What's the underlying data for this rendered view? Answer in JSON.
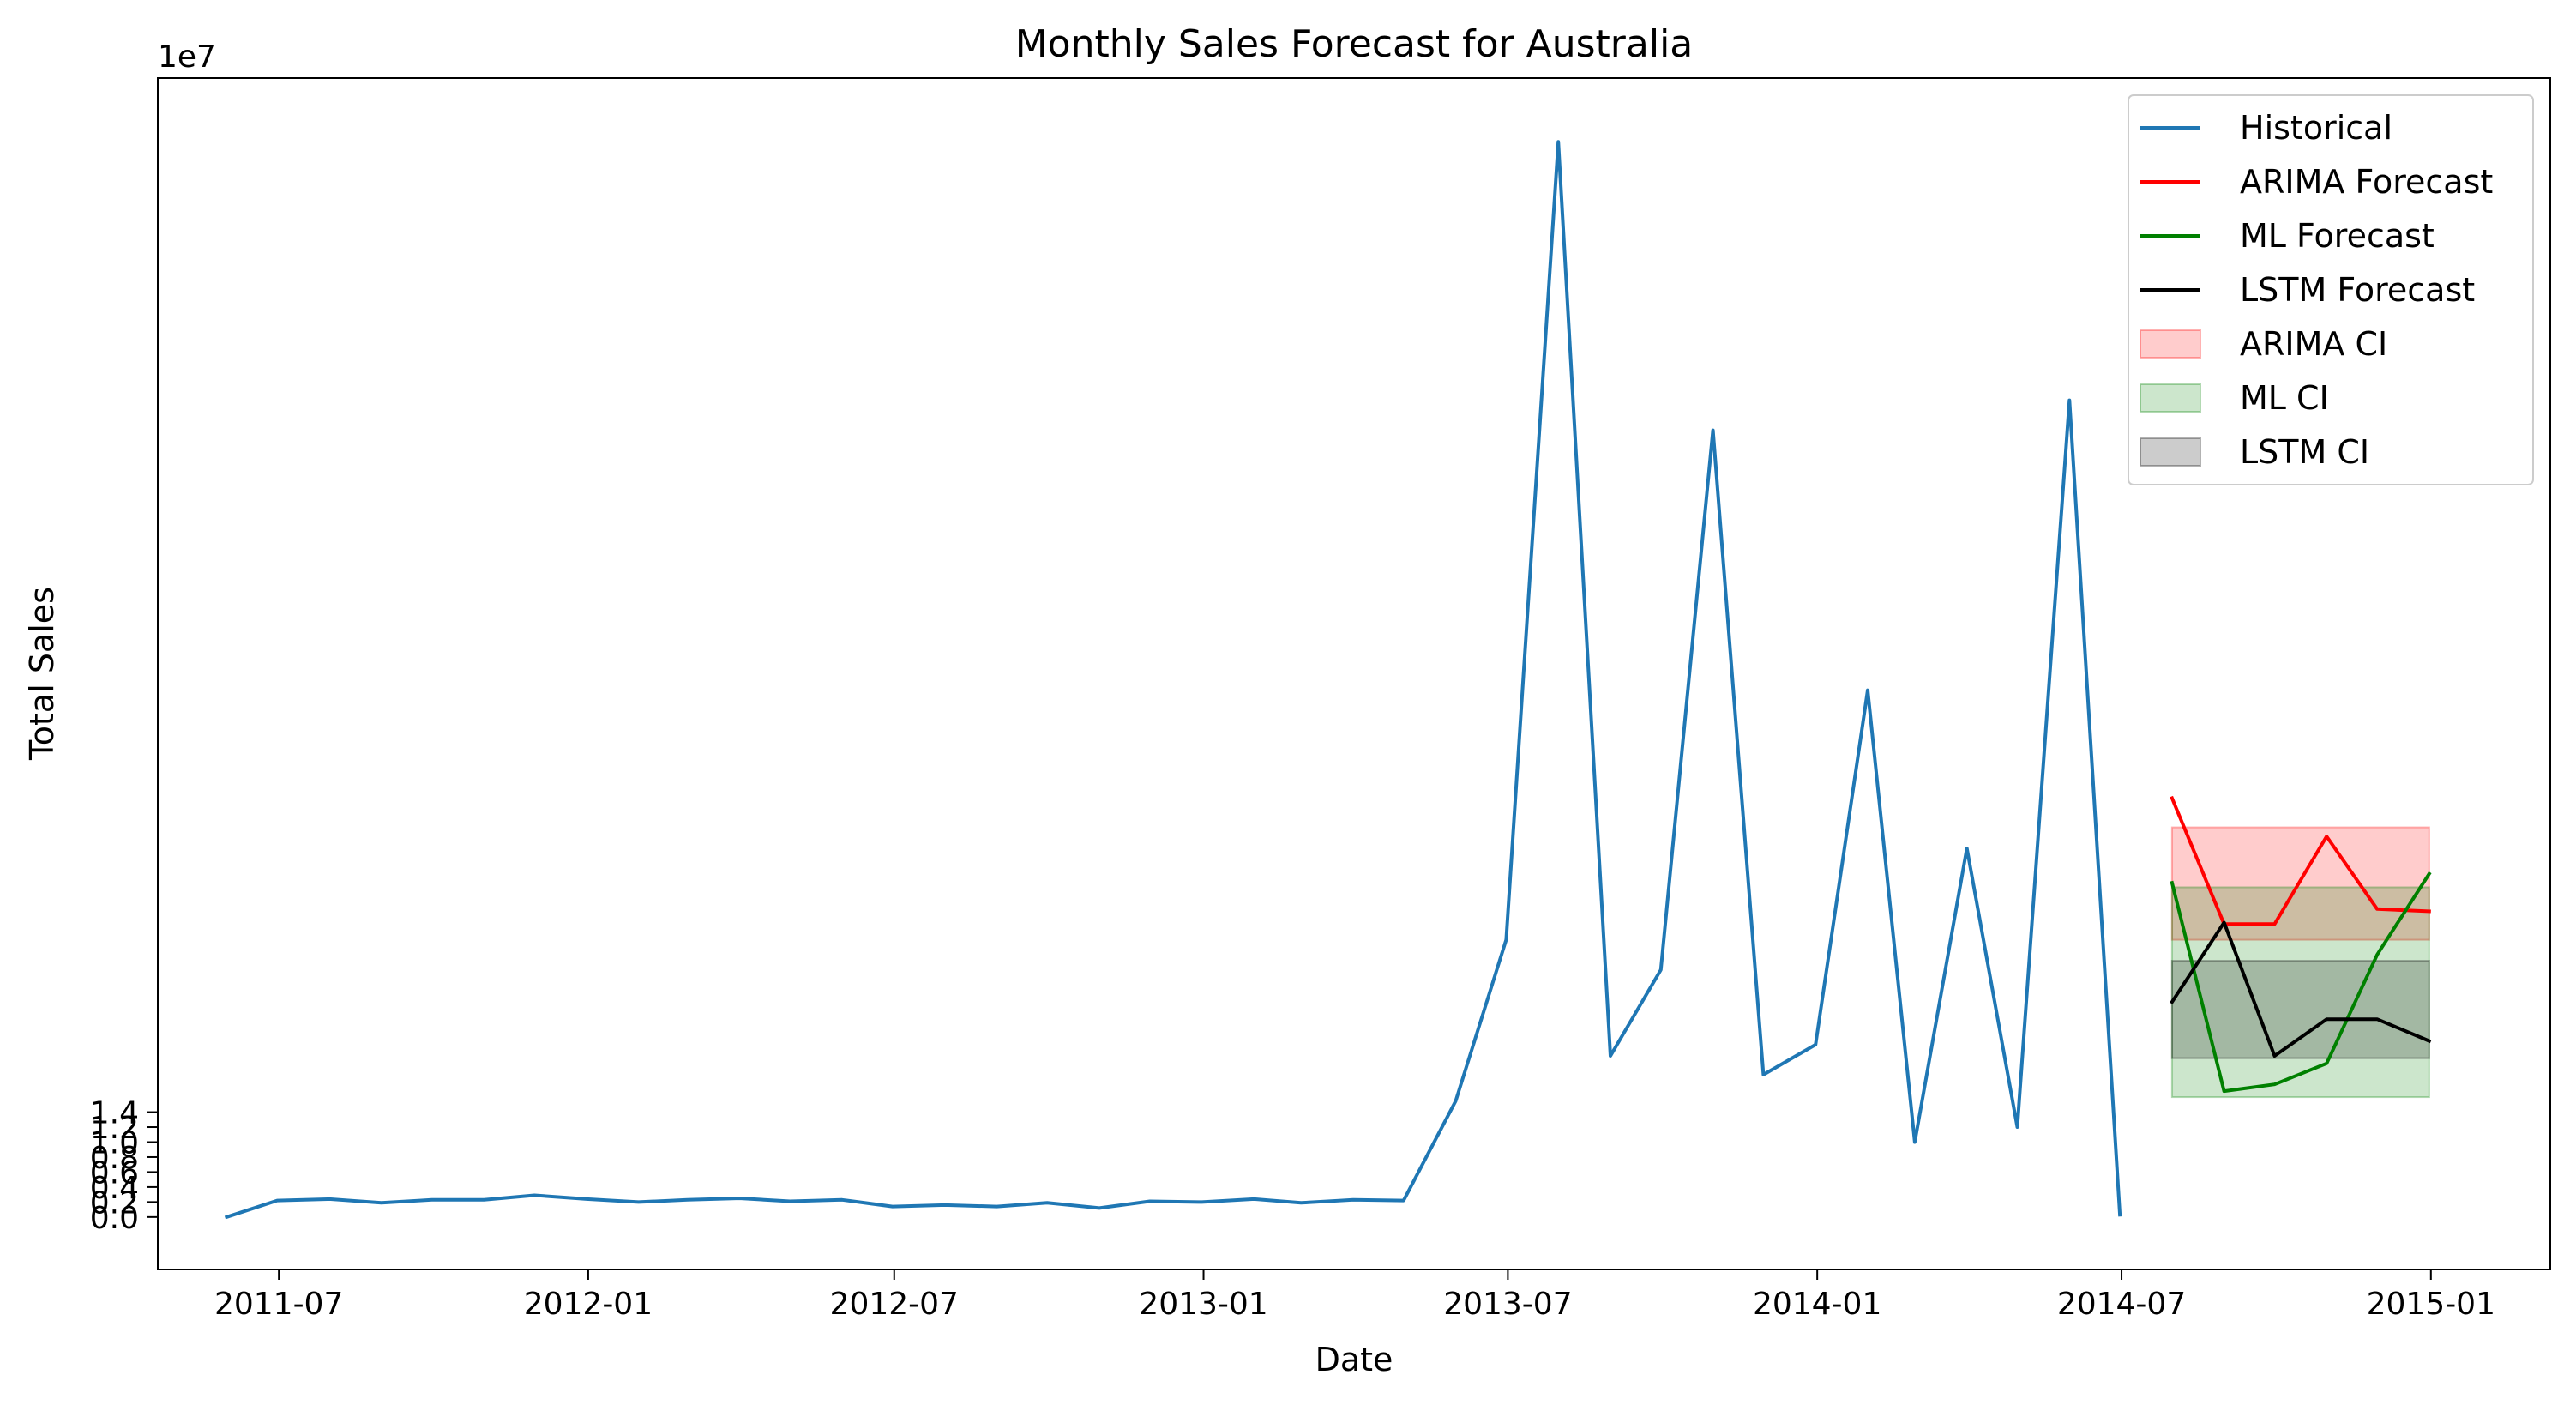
{
  "chart_data": {
    "type": "line",
    "title": "Monthly Sales Forecast for Australia",
    "xlabel": "Date",
    "ylabel": "Total Sales",
    "y_offset_label": "1e7",
    "y_scale_exponent": 7,
    "xlim": [
      "2011-04-20",
      "2015-03-13"
    ],
    "ylim": [
      -0.07,
      1.52
    ],
    "x_ticks": [
      "2011-07",
      "2012-01",
      "2012-07",
      "2013-01",
      "2013-07",
      "2014-01",
      "2014-07",
      "2015-01"
    ],
    "y_ticks": [
      "0.0",
      "0.2",
      "0.4",
      "0.6",
      "0.8",
      "1.0",
      "1.2",
      "1.4"
    ],
    "grid": false,
    "legend_position": "top-right",
    "series": [
      {
        "name": "Historical",
        "kind": "line",
        "color": "#1f77b4",
        "x": [
          "2011-05-31",
          "2011-06-30",
          "2011-07-31",
          "2011-08-31",
          "2011-09-30",
          "2011-10-31",
          "2011-11-30",
          "2011-12-31",
          "2012-01-31",
          "2012-02-29",
          "2012-03-31",
          "2012-04-30",
          "2012-05-31",
          "2012-06-30",
          "2012-07-31",
          "2012-08-31",
          "2012-09-30",
          "2012-10-31",
          "2012-11-30",
          "2012-12-31",
          "2013-01-31",
          "2013-02-28",
          "2013-03-31",
          "2013-04-30",
          "2013-05-31",
          "2013-06-30",
          "2013-07-31",
          "2013-08-31",
          "2013-09-30",
          "2013-10-31",
          "2013-11-30",
          "2013-12-31",
          "2014-01-31",
          "2014-02-28",
          "2014-03-31",
          "2014-04-30",
          "2014-05-31",
          "2014-06-30"
        ],
        "y": [
          0.0,
          0.022,
          0.024,
          0.019,
          0.023,
          0.023,
          0.029,
          0.024,
          0.02,
          0.023,
          0.025,
          0.021,
          0.023,
          0.014,
          0.016,
          0.014,
          0.019,
          0.012,
          0.021,
          0.02,
          0.024,
          0.019,
          0.023,
          0.022,
          0.155,
          0.37,
          1.435,
          0.215,
          0.33,
          1.05,
          0.19,
          0.23,
          0.703,
          0.1,
          0.492,
          0.12,
          1.09,
          0.003
        ]
      },
      {
        "name": "ARIMA Forecast",
        "kind": "line",
        "color": "#ff0000",
        "x": [
          "2014-07-31",
          "2014-08-31",
          "2014-09-30",
          "2014-10-31",
          "2014-11-30",
          "2014-12-31"
        ],
        "y": [
          0.559,
          0.391,
          0.391,
          0.508,
          0.411,
          0.408
        ]
      },
      {
        "name": "ML Forecast",
        "kind": "line",
        "color": "#008000",
        "x": [
          "2014-07-31",
          "2014-08-31",
          "2014-09-30",
          "2014-10-31",
          "2014-11-30",
          "2014-12-31"
        ],
        "y": [
          0.446,
          0.168,
          0.177,
          0.205,
          0.35,
          0.458
        ]
      },
      {
        "name": "LSTM Forecast",
        "kind": "line",
        "color": "#000000",
        "x": [
          "2014-07-31",
          "2014-08-31",
          "2014-09-30",
          "2014-10-31",
          "2014-11-30",
          "2014-12-31"
        ],
        "y": [
          0.287,
          0.393,
          0.215,
          0.264,
          0.264,
          0.235
        ]
      }
    ],
    "bands": [
      {
        "name": "ARIMA CI",
        "color": "#ff0000",
        "opacity": 0.2,
        "x": [
          "2014-07-31",
          "2014-12-31"
        ],
        "lower": 0.37,
        "upper": 0.52
      },
      {
        "name": "ML CI",
        "color": "#008000",
        "opacity": 0.2,
        "x": [
          "2014-07-31",
          "2014-12-31"
        ],
        "lower": 0.16,
        "upper": 0.44
      },
      {
        "name": "LSTM CI",
        "color": "#000000",
        "opacity": 0.2,
        "x": [
          "2014-07-31",
          "2014-12-31"
        ],
        "lower": 0.212,
        "upper": 0.342
      }
    ],
    "legend": [
      "Historical",
      "ARIMA Forecast",
      "ML Forecast",
      "LSTM Forecast",
      "ARIMA CI",
      "ML CI",
      "LSTM CI"
    ]
  }
}
